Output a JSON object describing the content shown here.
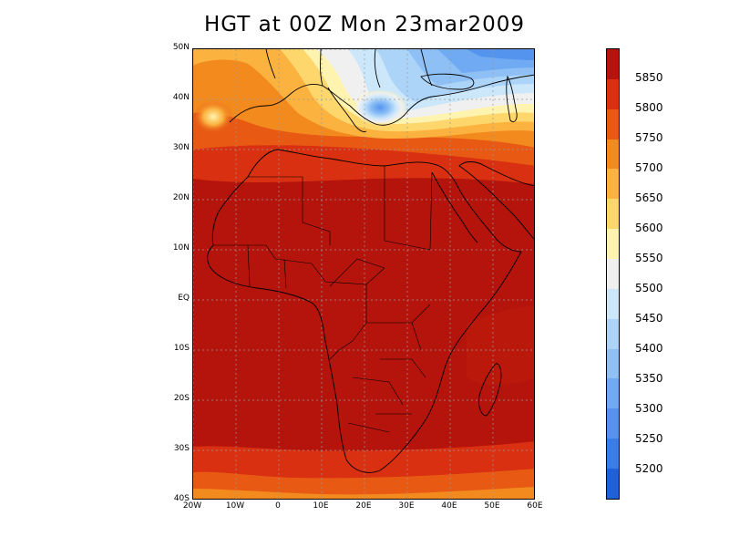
{
  "title": "HGT at 00Z Mon 23mar2009",
  "map": {
    "lon_range": [
      -20,
      60
    ],
    "lat_range": [
      -40,
      50
    ],
    "lat_ticks": [
      {
        "value": 50,
        "label": "50N"
      },
      {
        "value": 40,
        "label": "40N"
      },
      {
        "value": 30,
        "label": "30N"
      },
      {
        "value": 20,
        "label": "20N"
      },
      {
        "value": 10,
        "label": "10N"
      },
      {
        "value": 0,
        "label": "EQ"
      },
      {
        "value": -10,
        "label": "10S"
      },
      {
        "value": -20,
        "label": "20S"
      },
      {
        "value": -30,
        "label": "30S"
      },
      {
        "value": -40,
        "label": "40S"
      }
    ],
    "lon_ticks": [
      {
        "value": -20,
        "label": "20W"
      },
      {
        "value": -10,
        "label": "10W"
      },
      {
        "value": 0,
        "label": "0"
      },
      {
        "value": 10,
        "label": "10E"
      },
      {
        "value": 20,
        "label": "20E"
      },
      {
        "value": 30,
        "label": "30E"
      },
      {
        "value": 40,
        "label": "40E"
      },
      {
        "value": 50,
        "label": "50E"
      },
      {
        "value": 60,
        "label": "60E"
      }
    ],
    "gridlines": true
  },
  "colorbar": {
    "levels": [
      5200,
      5250,
      5300,
      5350,
      5400,
      5450,
      5500,
      5550,
      5600,
      5650,
      5700,
      5750,
      5800,
      5850
    ],
    "colors": [
      "#2060d8",
      "#3a7ce8",
      "#5494ee",
      "#70aaf2",
      "#8ec0f6",
      "#acd4f8",
      "#cce6fa",
      "#f0f0f0",
      "#fff3b0",
      "#fdd66c",
      "#fbb23e",
      "#f28a1e",
      "#e85a14",
      "#d83010",
      "#b4140c"
    ]
  }
}
